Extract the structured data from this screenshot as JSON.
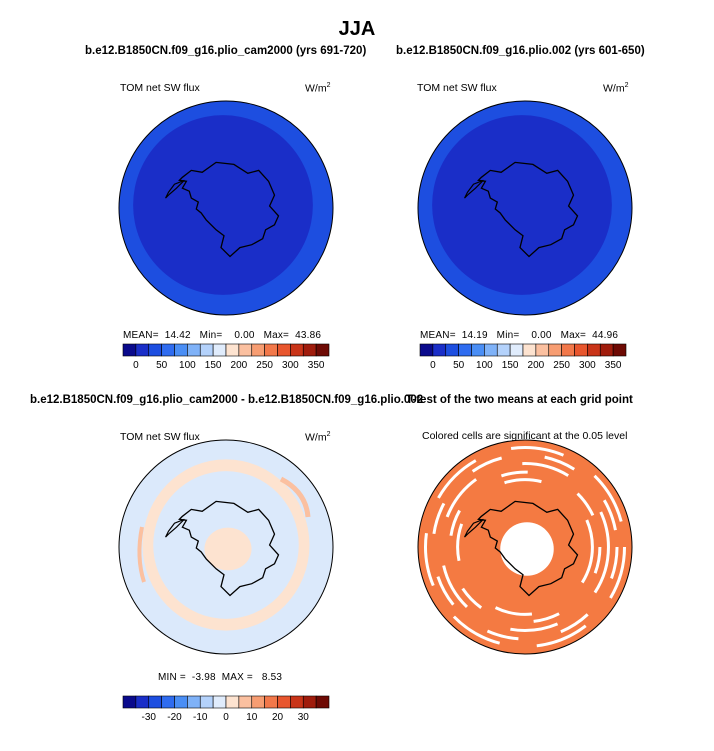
{
  "figure": {
    "title": "JJA",
    "panels": [
      {
        "title": "b.e12.B1850CN.f09_g16.plio_cam2000 (yrs 691-720)",
        "variable": "TOM net SW flux",
        "units": "W/m",
        "units_sup": "2",
        "stats": {
          "mean_label": "MEAN=",
          "mean": "14.42",
          "min_label": "Min=",
          "min": "0.00",
          "max_label": "Max=",
          "max": "43.86"
        }
      },
      {
        "title": "b.e12.B1850CN.f09_g16.plio.002 (yrs 601-650)",
        "variable": "TOM net SW flux",
        "units": "W/m",
        "units_sup": "2",
        "stats": {
          "mean_label": "MEAN=",
          "mean": "14.19",
          "min_label": "Min=",
          "min": "0.00",
          "max_label": "Max=",
          "max": "44.96"
        }
      },
      {
        "title": "b.e12.B1850CN.f09_g16.plio_cam2000 - b.e12.B1850CN.f09_g16.plio.002",
        "variable": "TOM net SW flux",
        "units": "W/m",
        "units_sup": "2",
        "stats": {
          "min_label": "MIN =",
          "min": "-3.98",
          "max_label": "MAX =",
          "max": "8.53"
        }
      },
      {
        "title": "T-test of the two means at each grid point",
        "caption": "Colored cells are significant at the 0.05 level"
      }
    ]
  },
  "chart_data": [
    {
      "type": "heatmap",
      "projection": "south-polar-stereographic",
      "title": "b.e12.B1850CN.f09_g16.plio_cam2000 (yrs 691-720)",
      "variable": "TOM net SW flux",
      "units": "W/m2",
      "colorbar": {
        "levels": [
          0,
          25,
          50,
          75,
          100,
          125,
          150,
          175,
          200,
          225,
          250,
          275,
          300,
          325,
          350
        ],
        "tick_labels": [
          "0",
          "50",
          "100",
          "150",
          "200",
          "250",
          "300",
          "350"
        ],
        "colors": [
          "#0a0a8c",
          "#1a2ec8",
          "#1d4ee0",
          "#2f6cf0",
          "#4a8ef5",
          "#7fb2f8",
          "#b4d2fb",
          "#e0ecfc",
          "#fde3d0",
          "#fbc0a0",
          "#f79d72",
          "#f2784a",
          "#e8562e",
          "#c93418",
          "#a01c0c",
          "#6e0a04"
        ]
      },
      "stats": {
        "mean": 14.42,
        "min": 0.0,
        "max": 43.86
      }
    },
    {
      "type": "heatmap",
      "projection": "south-polar-stereographic",
      "title": "b.e12.B1850CN.f09_g16.plio.002 (yrs 601-650)",
      "variable": "TOM net SW flux",
      "units": "W/m2",
      "colorbar": {
        "levels": [
          0,
          25,
          50,
          75,
          100,
          125,
          150,
          175,
          200,
          225,
          250,
          275,
          300,
          325,
          350
        ],
        "tick_labels": [
          "0",
          "50",
          "100",
          "150",
          "200",
          "250",
          "300",
          "350"
        ]
      },
      "stats": {
        "mean": 14.19,
        "min": 0.0,
        "max": 44.96
      }
    },
    {
      "type": "heatmap",
      "projection": "south-polar-stereographic",
      "title": "b.e12.B1850CN.f09_g16.plio_cam2000 - b.e12.B1850CN.f09_g16.plio.002",
      "variable": "TOM net SW flux",
      "units": "W/m2",
      "colorbar": {
        "levels": [
          -35,
          -30,
          -25,
          -20,
          -15,
          -10,
          -5,
          0,
          5,
          10,
          15,
          20,
          25,
          30,
          35
        ],
        "tick_labels": [
          "-30",
          "-20",
          "-10",
          "0",
          "10",
          "20",
          "30"
        ],
        "colors": [
          "#0a0a8c",
          "#1a2ec8",
          "#1d4ee0",
          "#2f6cf0",
          "#4a8ef5",
          "#7fb2f8",
          "#b4d2fb",
          "#e0ecfc",
          "#fde3d0",
          "#fbc0a0",
          "#f79d72",
          "#f2784a",
          "#e8562e",
          "#c93418",
          "#a01c0c",
          "#6e0a04"
        ]
      },
      "stats": {
        "min": -3.98,
        "max": 8.53
      }
    },
    {
      "type": "heatmap",
      "projection": "south-polar-stereographic",
      "title": "T-test of the two means at each grid point",
      "caption": "Colored cells are significant at the 0.05 level",
      "significant_color": "#f47a42"
    }
  ]
}
